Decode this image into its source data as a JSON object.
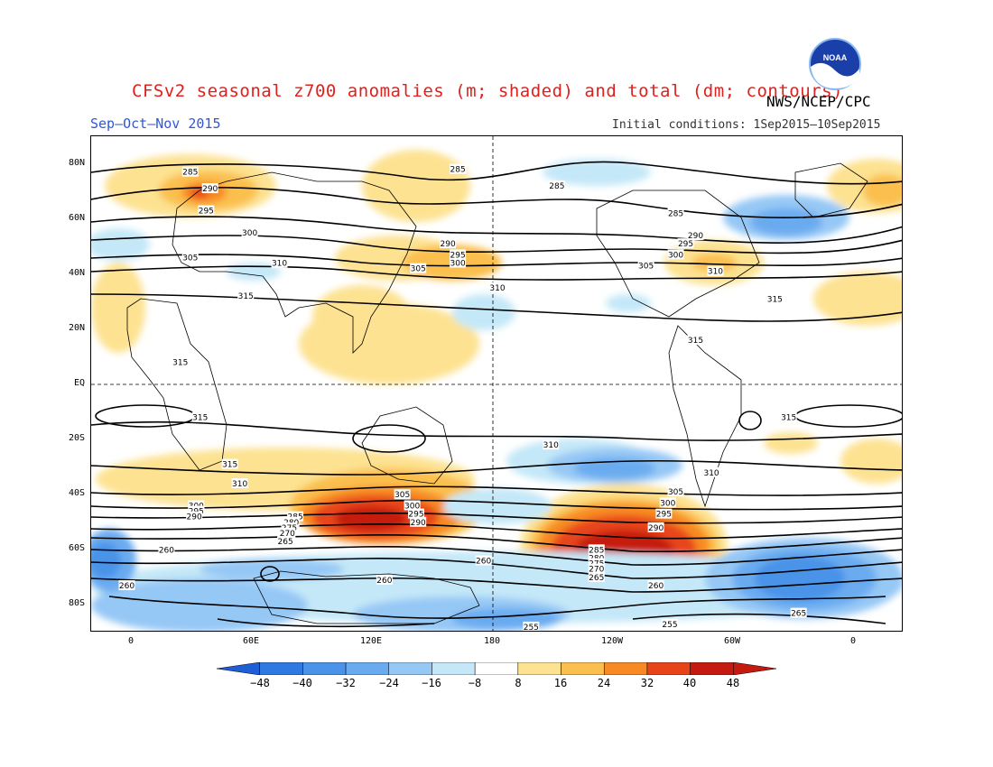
{
  "title": "CFSv2 seasonal z700 anomalies (m; shaded) and total (dm; contours)",
  "agency": "NWS/NCEP/CPC",
  "logo_text": "NOAA",
  "season": "Sep–Oct–Nov 2015",
  "initial_conditions": "Initial conditions: 1Sep2015–10Sep2015",
  "lat_labels": [
    "80N",
    "60N",
    "40N",
    "20N",
    "EQ",
    "20S",
    "40S",
    "60S",
    "80S"
  ],
  "lon_labels": [
    "0",
    "60E",
    "120E",
    "180",
    "120W",
    "60W",
    "0"
  ],
  "colorbar": {
    "labels": [
      "−48",
      "−40",
      "−32",
      "−24",
      "−16",
      "−8",
      "8",
      "16",
      "24",
      "32",
      "40",
      "48"
    ],
    "colors": [
      "#1e5fd8",
      "#2f7ae0",
      "#4a93e8",
      "#6aabf0",
      "#96c8f5",
      "#c4e8f8",
      "#ffffff",
      "#fde291",
      "#fbbf4d",
      "#f78a24",
      "#e8441a",
      "#c51a10"
    ]
  },
  "contour_labels": [
    {
      "text": "285",
      "lon": 30,
      "lat": 77
    },
    {
      "text": "290",
      "lon": 40,
      "lat": 71
    },
    {
      "text": "295",
      "lon": 38,
      "lat": 63
    },
    {
      "text": "300",
      "lon": 60,
      "lat": 55
    },
    {
      "text": "305",
      "lon": 30,
      "lat": 46
    },
    {
      "text": "310",
      "lon": 75,
      "lat": 44
    },
    {
      "text": "315",
      "lon": 58,
      "lat": 32
    },
    {
      "text": "285",
      "lon": 165,
      "lat": 78
    },
    {
      "text": "285",
      "lon": -145,
      "lat": 72
    },
    {
      "text": "285",
      "lon": -85,
      "lat": 62
    },
    {
      "text": "290",
      "lon": 160,
      "lat": 51
    },
    {
      "text": "295",
      "lon": 165,
      "lat": 47
    },
    {
      "text": "300",
      "lon": 165,
      "lat": 44
    },
    {
      "text": "305",
      "lon": 145,
      "lat": 42
    },
    {
      "text": "310",
      "lon": 185,
      "lat": 35
    },
    {
      "text": "290",
      "lon": -75,
      "lat": 54
    },
    {
      "text": "295",
      "lon": -80,
      "lat": 51
    },
    {
      "text": "300",
      "lon": -85,
      "lat": 47
    },
    {
      "text": "305",
      "lon": -100,
      "lat": 43
    },
    {
      "text": "310",
      "lon": -65,
      "lat": 41
    },
    {
      "text": "315",
      "lon": -35,
      "lat": 31
    },
    {
      "text": "315",
      "lon": -75,
      "lat": 16
    },
    {
      "text": "315",
      "lon": 25,
      "lat": 8
    },
    {
      "text": "315",
      "lon": 35,
      "lat": -12
    },
    {
      "text": "315",
      "lon": -28,
      "lat": -12
    },
    {
      "text": "315",
      "lon": 50,
      "lat": -29
    },
    {
      "text": "310",
      "lon": 55,
      "lat": -36
    },
    {
      "text": "310",
      "lon": -148,
      "lat": -22
    },
    {
      "text": "310",
      "lon": -67,
      "lat": -32
    },
    {
      "text": "305",
      "lon": 137,
      "lat": -40
    },
    {
      "text": "300",
      "lon": 142,
      "lat": -44
    },
    {
      "text": "295",
      "lon": 144,
      "lat": -47
    },
    {
      "text": "290",
      "lon": 145,
      "lat": -50
    },
    {
      "text": "300",
      "lon": 33,
      "lat": -44
    },
    {
      "text": "295",
      "lon": 33,
      "lat": -46
    },
    {
      "text": "290",
      "lon": 32,
      "lat": -48
    },
    {
      "text": "285",
      "lon": 83,
      "lat": -48
    },
    {
      "text": "280",
      "lon": 81,
      "lat": -50
    },
    {
      "text": "275",
      "lon": 80,
      "lat": -52
    },
    {
      "text": "270",
      "lon": 79,
      "lat": -54
    },
    {
      "text": "265",
      "lon": 78,
      "lat": -57
    },
    {
      "text": "305",
      "lon": -85,
      "lat": -39
    },
    {
      "text": "300",
      "lon": -89,
      "lat": -43
    },
    {
      "text": "295",
      "lon": -91,
      "lat": -47
    },
    {
      "text": "290",
      "lon": -95,
      "lat": -52
    },
    {
      "text": "285",
      "lon": -125,
      "lat": -60
    },
    {
      "text": "280",
      "lon": -125,
      "lat": -63
    },
    {
      "text": "275",
      "lon": -125,
      "lat": -65
    },
    {
      "text": "270",
      "lon": -125,
      "lat": -67
    },
    {
      "text": "265",
      "lon": -125,
      "lat": -70
    },
    {
      "text": "260",
      "lon": 18,
      "lat": -60
    },
    {
      "text": "260",
      "lon": 178,
      "lat": -64
    },
    {
      "text": "260",
      "lon": -95,
      "lat": -73
    },
    {
      "text": "260",
      "lon": -2,
      "lat": -73
    },
    {
      "text": "260",
      "lon": 128,
      "lat": -71
    },
    {
      "text": "265",
      "lon": -23,
      "lat": -83
    },
    {
      "text": "255",
      "lon": -158,
      "lat": -88
    },
    {
      "text": "255",
      "lon": -88,
      "lat": -87
    }
  ]
}
